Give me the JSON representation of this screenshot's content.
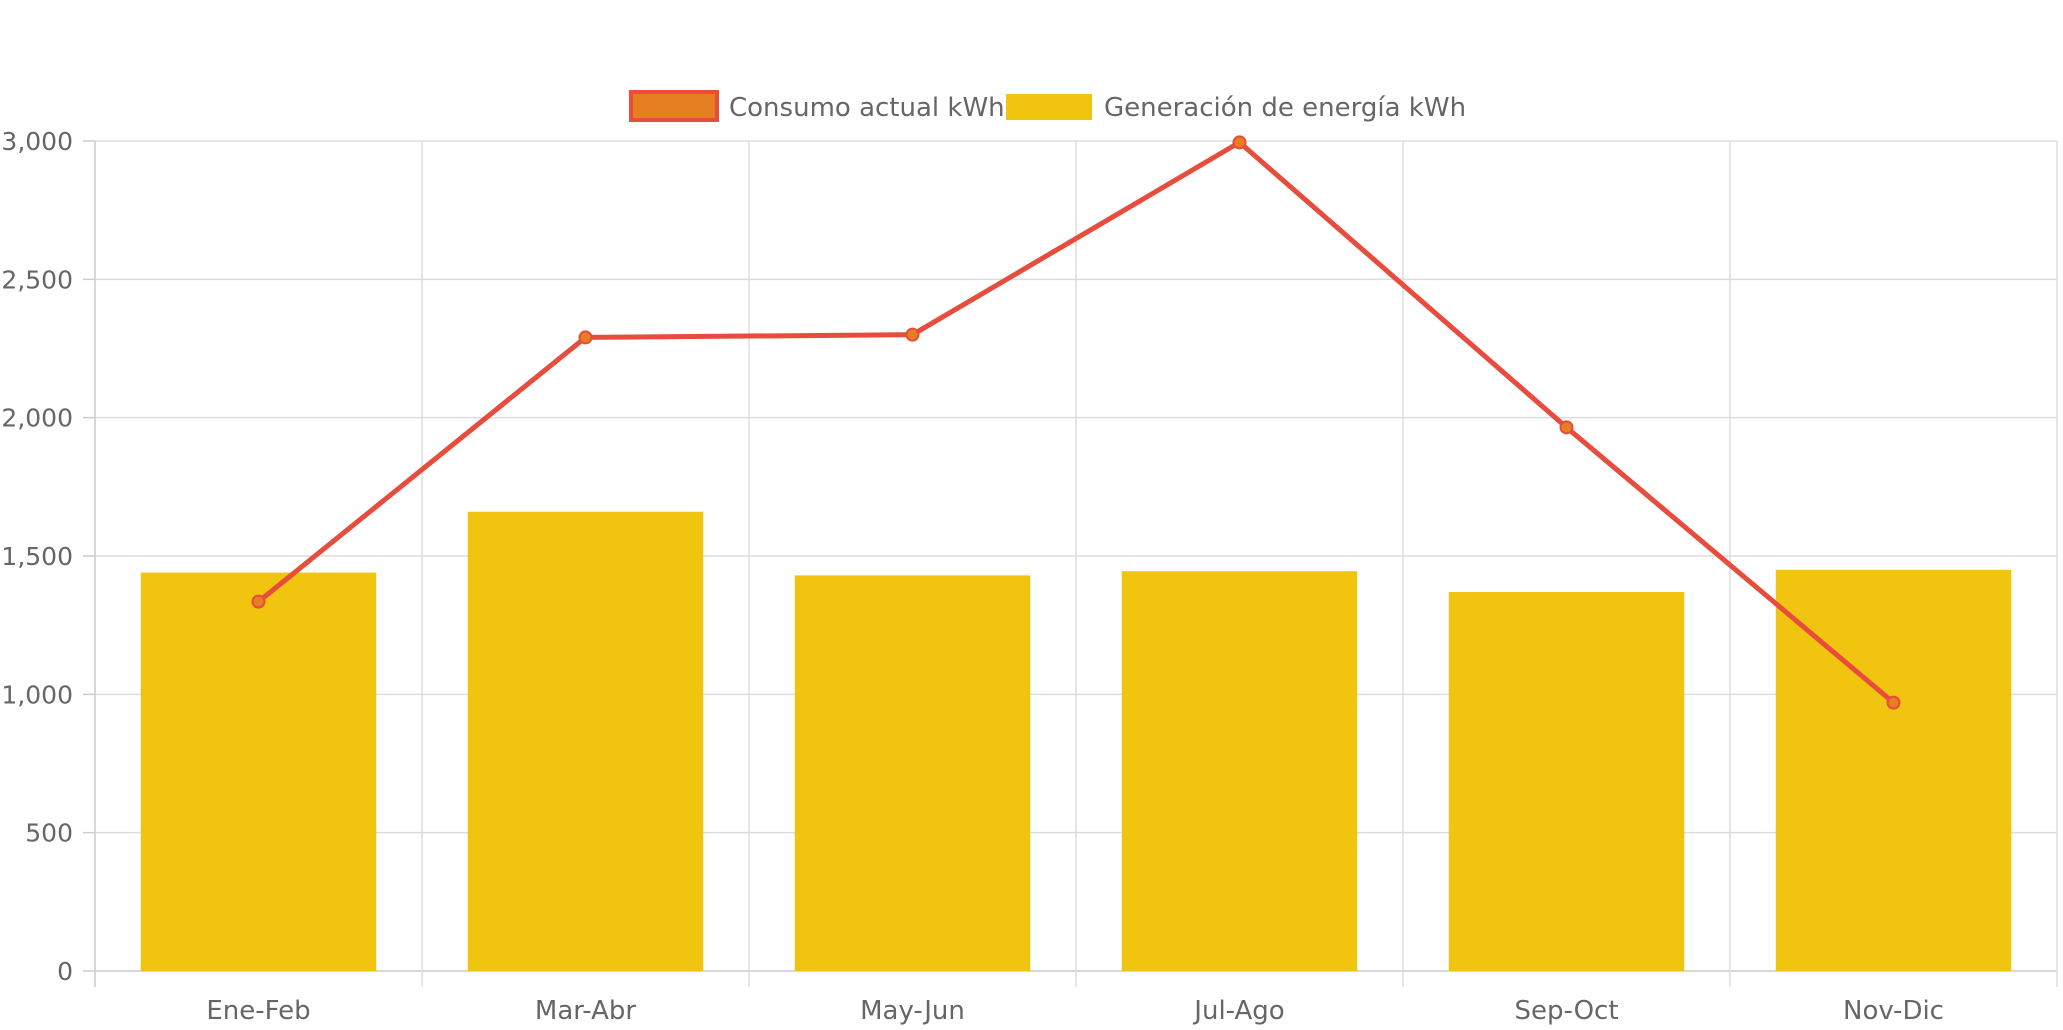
{
  "chart_data": {
    "type": "bar",
    "categories": [
      "Ene-Feb",
      "Mar-Abr",
      "May-Jun",
      "Jul-Ago",
      "Sep-Oct",
      "Nov-Dic"
    ],
    "series": [
      {
        "name": "Consumo actual kWh",
        "type": "line",
        "values": [
          1335,
          2290,
          2300,
          2995,
          1965,
          970
        ],
        "color": "#e74c3c",
        "point_color": "#e67e22"
      },
      {
        "name": "Generación de energía kWh",
        "type": "bar",
        "values": [
          1440,
          1660,
          1430,
          1445,
          1370,
          1450
        ],
        "color": "#f1c40f"
      }
    ],
    "title": "",
    "xlabel": "",
    "ylabel": "",
    "ylim": [
      0,
      3000
    ],
    "yticks": [
      0,
      500,
      1000,
      1500,
      2000,
      2500,
      3000
    ],
    "ytick_labels": [
      "0",
      "500",
      "1,000",
      "1,500",
      "2,000",
      "2,500",
      "3,000"
    ],
    "grid": true,
    "legend_position": "top-center"
  },
  "colors": {
    "grid": "#dddddd",
    "axis": "#cccccc",
    "text": "#666666"
  }
}
